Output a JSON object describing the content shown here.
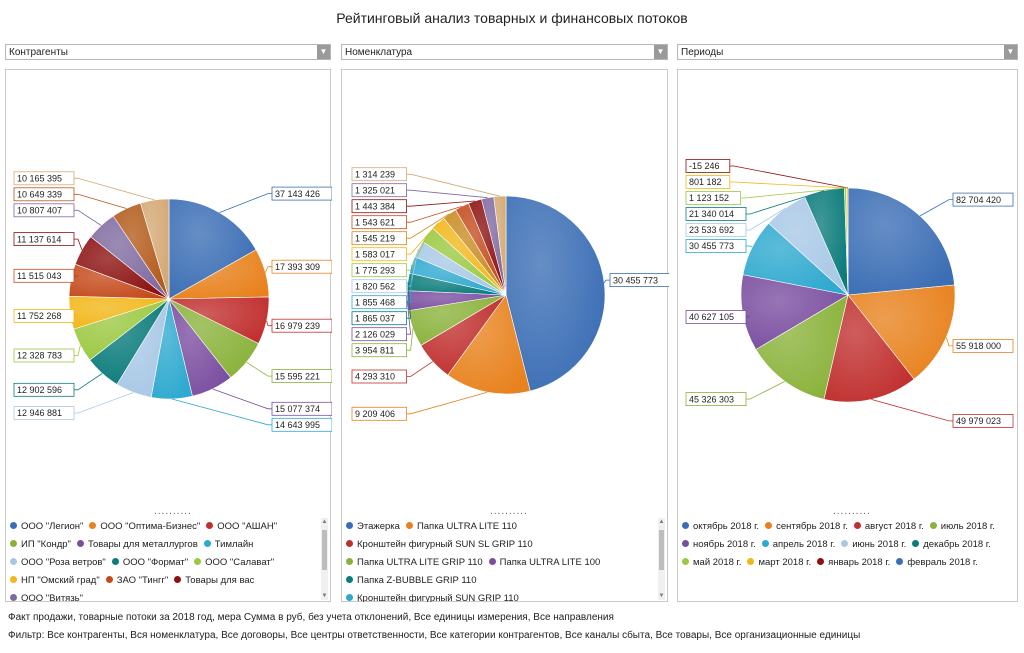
{
  "title": "Рейтинговый анализ товарных и финансовых потоков",
  "dropdowns": [
    {
      "label": "Контрагенты"
    },
    {
      "label": "Номенклатура"
    },
    {
      "label": "Периоды"
    }
  ],
  "footer": {
    "line1": "Факт продажи, товарные потоки за 2018 год, мера Сумма в руб, без учета отклонений, Все единицы измерения, Все направления",
    "line2": "Фильтр: Все контрагенты, Вся номенклатура, Все договоры, Все центры ответственности, Все категории контрагентов, Все каналы сбыта, Все товары, Все организационные единицы"
  },
  "legend_dots": "..........",
  "colors": [
    "#3b6eb5",
    "#e8821e",
    "#c0302f",
    "#8ab23a",
    "#7a4ea0",
    "#2ea9cf",
    "#a8c8e6",
    "#0b7b7b",
    "#9bc840",
    "#f2b618",
    "#8c1010",
    "#6f63a8",
    "#c98a1f",
    "#b25a1a",
    "#7f6aa0",
    "#d4a874"
  ],
  "chart_data": [
    {
      "type": "pie",
      "legend": [
        "ООО \"Легион\"",
        "ООО \"Оптима-Бизнес\"",
        "ООО \"АШАН\"",
        "ИП \"Кондр\"",
        "Товары для металлургов",
        "Тимлайн",
        "ООО \"Роза ветров\"",
        "ООО \"Формат\"",
        "ООО \"Салават\"",
        "НП \"Омский град\"",
        "ЗАО \"Тингг\"",
        "Товары для вас",
        "ООО \"Витязь\""
      ],
      "values": [
        37143426,
        17393309,
        16979239,
        15595221,
        15077374,
        14643995,
        12946881,
        12902596,
        12328783,
        11752268,
        11515043,
        11137614,
        10807407,
        10649339,
        10165395
      ],
      "labels": [
        "37 143 426",
        "17 393 309",
        "16 979 239",
        "15 595 221",
        "15 077 374",
        "14 643 995",
        "12 946 881",
        "12 902 596",
        "12 328 783",
        "11 752 268",
        "11 515 043",
        "11 137 614",
        "10 807 407",
        "10 649 339",
        "10 165 395"
      ],
      "colors": [
        "#3b6eb5",
        "#e8821e",
        "#c0302f",
        "#8ab23a",
        "#7a4ea0",
        "#2ea9cf",
        "#a8c8e6",
        "#0b7b7b",
        "#9bc840",
        "#f2b618",
        "#c44a1c",
        "#8c1010",
        "#7f6aa0",
        "#b25a1a",
        "#d4a874"
      ]
    },
    {
      "type": "pie",
      "legend": [
        "Этажерка",
        "Папка  ULTRA LITE  110",
        "Кронштейн фигурный  SUN SL GRIP  110",
        "Папка  ULTRA LITE GRIP  110",
        "Папка  ULTRA LITE  100",
        "Папка  Z-BUBBLE GRIP  110",
        "Кронштейн фигурный  SUN GRIP  110"
      ],
      "values": [
        30455773,
        9209406,
        4293310,
        3954811,
        2126029,
        1865037,
        1855468,
        1820562,
        1775293,
        1583017,
        1545219,
        1543621,
        1443384,
        1325021,
        1314239
      ],
      "labels": [
        "30 455 773",
        "9 209 406",
        "4 293 310",
        "3 954 811",
        "2 126 029",
        "1 865 037",
        "1 855 468",
        "1 820 562",
        "1 775 293",
        "1 583 017",
        "1 545 219",
        "1 543 621",
        "1 443 384",
        "1 325 021",
        "1 314 239"
      ],
      "colors": [
        "#3b6eb5",
        "#e8821e",
        "#c0302f",
        "#8ab23a",
        "#7a4ea0",
        "#0b7b7b",
        "#2ea9cf",
        "#a8c8e6",
        "#9bc840",
        "#f2b618",
        "#c98a1f",
        "#c44a1c",
        "#8c1010",
        "#7f6aa0",
        "#d4a874"
      ]
    },
    {
      "type": "pie",
      "legend": [
        "октябрь 2018 г.",
        "сентябрь 2018 г.",
        "август 2018 г.",
        "июль 2018 г.",
        "ноябрь 2018 г.",
        "апрель 2018 г.",
        "июнь 2018 г.",
        "декабрь 2018 г.",
        "май 2018 г.",
        "март 2018 г.",
        "январь 2018 г.",
        "февраль 2018 г."
      ],
      "values": [
        82704420,
        55918000,
        49979023,
        45326303,
        40627105,
        30455773,
        23533692,
        21340014,
        1123152,
        801182,
        -15246
      ],
      "labels": [
        "82 704 420",
        "55 918 000",
        "49 979 023",
        "45 326 303",
        "40 627 105",
        "30 455 773",
        "23 533 692",
        "21 340 014",
        "1 123 152",
        "801 182",
        "-15 246"
      ],
      "colors": [
        "#3b6eb5",
        "#e8821e",
        "#c0302f",
        "#8ab23a",
        "#7a4ea0",
        "#2ea9cf",
        "#a8c8e6",
        "#0b7b7b",
        "#9bc840",
        "#f2b618",
        "#8c1010"
      ]
    }
  ]
}
